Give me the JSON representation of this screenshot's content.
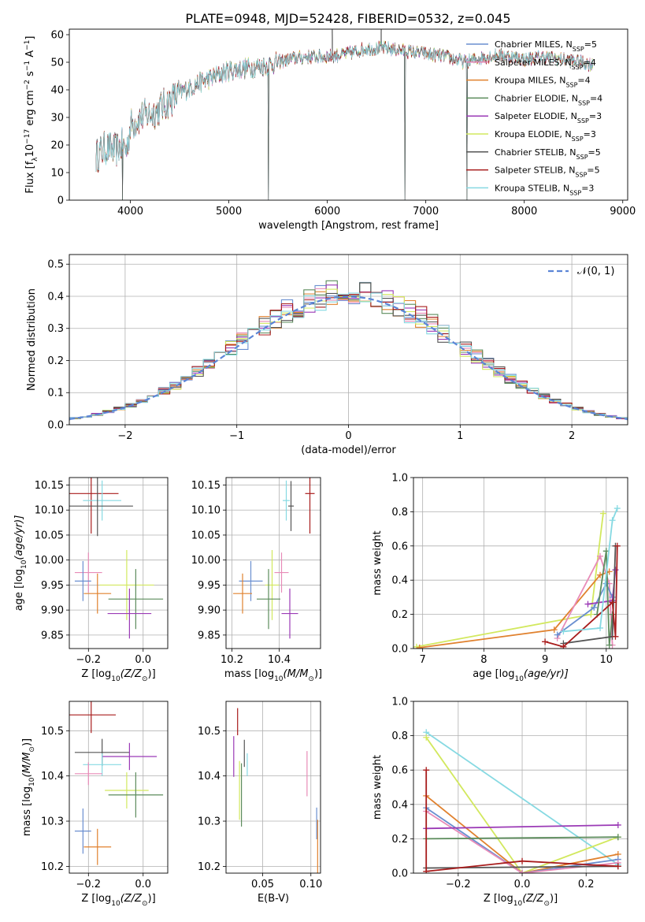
{
  "title": "PLATE=0948, MJD=52428, FIBERID=0532, z=0.045",
  "colors": {
    "cm": "#6a8fd0",
    "sm": "#e88bb8",
    "km": "#e0812e",
    "ce": "#5c8c5c",
    "se": "#9b3ab6",
    "ke": "#d2e85e",
    "cs": "#555555",
    "ss": "#a81c1c",
    "ks": "#86d9e2"
  },
  "legend": [
    {
      "key": "cm",
      "text": "Chabrier MILES, N",
      "sub": "SSP",
      "tail": "=5"
    },
    {
      "key": "sm",
      "text": "Salpeter MILES, N",
      "sub": "SSP",
      "tail": "=4"
    },
    {
      "key": "km",
      "text": "Kroupa MILES, N",
      "sub": "SSP",
      "tail": "=4"
    },
    {
      "key": "ce",
      "text": "Chabrier ELODIE, N",
      "sub": "SSP",
      "tail": "=4"
    },
    {
      "key": "se",
      "text": "Salpeter ELODIE, N",
      "sub": "SSP",
      "tail": "=3"
    },
    {
      "key": "ke",
      "text": "Kroupa ELODIE, N",
      "sub": "SSP",
      "tail": "=3"
    },
    {
      "key": "cs",
      "text": "Chabrier STELIB, N",
      "sub": "SSP",
      "tail": "=5"
    },
    {
      "key": "ss",
      "text": "Salpeter STELIB, N",
      "sub": "SSP",
      "tail": "=5"
    },
    {
      "key": "ks",
      "text": "Kroupa STELIB, N",
      "sub": "SSP",
      "tail": "=3"
    }
  ],
  "chart_data": [
    {
      "id": "spectrum",
      "type": "line",
      "xlabel": "wavelength [Angstrom, rest frame]",
      "ylabel_parts": [
        "Flux [f",
        "λ",
        "10",
        "−17",
        " erg cm",
        "−2",
        " s",
        "−1",
        " A",
        "−1",
        "]"
      ],
      "xlim": [
        3380,
        9050
      ],
      "ylim": [
        0,
        62
      ],
      "xticks": [
        4000,
        5000,
        6000,
        7000,
        8000,
        9000
      ],
      "yticks": [
        0,
        10,
        20,
        30,
        40,
        50,
        60
      ],
      "continuum": [
        [
          3650,
          16
        ],
        [
          3750,
          19
        ],
        [
          3850,
          18
        ],
        [
          3920,
          20
        ],
        [
          3960,
          18
        ],
        [
          4000,
          27
        ],
        [
          4100,
          30
        ],
        [
          4250,
          32
        ],
        [
          4400,
          36
        ],
        [
          4600,
          41
        ],
        [
          4800,
          44
        ],
        [
          5000,
          47
        ],
        [
          5200,
          48
        ],
        [
          5400,
          49
        ],
        [
          5600,
          51
        ],
        [
          5800,
          52
        ],
        [
          6000,
          52
        ],
        [
          6200,
          53
        ],
        [
          6400,
          55
        ],
        [
          6600,
          55
        ],
        [
          6800,
          54
        ],
        [
          7000,
          53
        ],
        [
          7200,
          52
        ],
        [
          7400,
          50
        ],
        [
          7600,
          52
        ],
        [
          7800,
          52.5
        ],
        [
          8000,
          51
        ],
        [
          8200,
          52
        ],
        [
          8400,
          51
        ],
        [
          8600,
          50
        ],
        [
          8700,
          49
        ]
      ],
      "dips": [
        [
          3920,
          0
        ],
        [
          5400,
          0
        ],
        [
          6790,
          0
        ],
        [
          7420,
          0
        ]
      ],
      "spikes": [
        [
          6050,
          62
        ],
        [
          6550,
          62
        ]
      ]
    },
    {
      "id": "residuals",
      "type": "histogram",
      "xlabel": "(data-model)/error",
      "ylabel": "Normed distribution",
      "xlim": [
        -2.5,
        2.5
      ],
      "ylim": [
        0,
        0.53
      ],
      "xticks": [
        -2,
        -1,
        0,
        1,
        2
      ],
      "yticks": [
        0.0,
        0.1,
        0.2,
        0.3,
        0.4,
        0.5
      ],
      "bin_width": 0.1,
      "legend": [
        "𝒩(0, 1)"
      ]
    },
    {
      "id": "age_vs_z",
      "type": "errorbar",
      "xlabel_parts": [
        "Z [log",
        "10",
        "(Z/Z",
        "⊙",
        ")]"
      ],
      "ylabel_parts": [
        "age  [log",
        "10",
        "(age/yr)]"
      ],
      "xlim": [
        -0.27,
        0.09
      ],
      "ylim": [
        9.823,
        10.165
      ],
      "xticks": [
        -0.2,
        0.0
      ],
      "yticks": [
        9.85,
        9.9,
        9.95,
        10.0,
        10.05,
        10.1,
        10.15
      ],
      "points": [
        {
          "key": "ss",
          "x": -0.19,
          "xerr": 0.1,
          "y": 10.133,
          "yerr": 0.08
        },
        {
          "key": "ks",
          "x": -0.15,
          "xerr": 0.07,
          "y": 10.119,
          "yerr": 0.04
        },
        {
          "key": "cs",
          "x": -0.167,
          "xerr": 0.13,
          "y": 10.108,
          "yerr": 0.06
        },
        {
          "key": "sm",
          "x": -0.2,
          "xerr": 0.05,
          "y": 9.975,
          "yerr": 0.04
        },
        {
          "key": "ke",
          "x": -0.06,
          "xerr": 0.1,
          "y": 9.95,
          "yerr": 0.07
        },
        {
          "key": "cm",
          "x": -0.22,
          "xerr": 0.03,
          "y": 9.958,
          "yerr": 0.04
        },
        {
          "key": "km",
          "x": -0.167,
          "xerr": 0.05,
          "y": 9.933,
          "yerr": 0.04
        },
        {
          "key": "ce",
          "x": -0.027,
          "xerr": 0.1,
          "y": 9.922,
          "yerr": 0.06
        },
        {
          "key": "se",
          "x": -0.05,
          "xerr": 0.08,
          "y": 9.893,
          "yerr": 0.05
        }
      ]
    },
    {
      "id": "age_vs_mass",
      "type": "errorbar",
      "xlabel_parts": [
        "mass [log",
        "10",
        "(M/M",
        "⊙",
        ")]"
      ],
      "xlim": [
        10.175,
        10.575
      ],
      "ylim": [
        9.823,
        10.165
      ],
      "xticks": [
        10.2,
        10.4
      ],
      "yticks": [
        9.85,
        9.9,
        9.95,
        10.0,
        10.05,
        10.1,
        10.15
      ],
      "points": [
        {
          "key": "ss",
          "x": 10.53,
          "xerr": 0.02,
          "y": 10.133,
          "yerr": 0.08
        },
        {
          "key": "ks",
          "x": 10.43,
          "xerr": 0.015,
          "y": 10.119,
          "yerr": 0.04
        },
        {
          "key": "cs",
          "x": 10.45,
          "xerr": 0.012,
          "y": 10.108,
          "yerr": 0.05
        },
        {
          "key": "sm",
          "x": 10.41,
          "xerr": 0.03,
          "y": 9.975,
          "yerr": 0.04
        },
        {
          "key": "ke",
          "x": 10.37,
          "xerr": 0.03,
          "y": 9.95,
          "yerr": 0.07
        },
        {
          "key": "cm",
          "x": 10.28,
          "xerr": 0.05,
          "y": 9.958,
          "yerr": 0.04
        },
        {
          "key": "km",
          "x": 10.245,
          "xerr": 0.04,
          "y": 9.933,
          "yerr": 0.04
        },
        {
          "key": "ce",
          "x": 10.355,
          "xerr": 0.05,
          "y": 9.922,
          "yerr": 0.06
        },
        {
          "key": "se",
          "x": 10.445,
          "xerr": 0.035,
          "y": 9.893,
          "yerr": 0.05
        }
      ]
    },
    {
      "id": "weight_vs_age",
      "type": "line",
      "xlabel_parts": [
        "age  [log",
        "10",
        "(age/yr)]"
      ],
      "ylabel": "mass weight",
      "xlim": [
        6.85,
        10.35
      ],
      "ylim": [
        0,
        1
      ],
      "xticks": [
        7,
        8,
        9,
        10
      ],
      "yticks": [
        0.0,
        0.2,
        0.4,
        0.6,
        0.8,
        1.0
      ],
      "series": [
        {
          "key": "ke",
          "x": [
            6.9,
            9.75,
            9.95
          ],
          "y": [
            0.01,
            0.2,
            0.79
          ]
        },
        {
          "key": "km",
          "x": [
            6.95,
            9.15,
            9.9,
            10.05
          ],
          "y": [
            0.005,
            0.11,
            0.43,
            0.45
          ]
        },
        {
          "key": "sm",
          "x": [
            9.2,
            9.9,
            10.05,
            10.1
          ],
          "y": [
            0.06,
            0.54,
            0.38,
            0.02
          ]
        },
        {
          "key": "cm",
          "x": [
            9.2,
            9.8,
            10.0,
            10.1
          ],
          "y": [
            0.08,
            0.24,
            0.38,
            0.3
          ]
        },
        {
          "key": "se",
          "x": [
            9.7,
            10.1,
            10.15
          ],
          "y": [
            0.26,
            0.28,
            0.46
          ]
        },
        {
          "key": "ce",
          "x": [
            9.85,
            10.0,
            10.05,
            10.1
          ],
          "y": [
            0.2,
            0.57,
            0.02,
            0.2
          ]
        },
        {
          "key": "cs",
          "x": [
            9.3,
            10.1,
            10.15
          ],
          "y": [
            0.03,
            0.07,
            0.6
          ]
        },
        {
          "key": "ss",
          "x": [
            9.0,
            9.3,
            10.1,
            10.15,
            10.18
          ],
          "y": [
            0.04,
            0.01,
            0.27,
            0.07,
            0.6
          ]
        },
        {
          "key": "ks",
          "x": [
            9.3,
            9.9,
            10.1,
            10.18
          ],
          "y": [
            0.1,
            0.12,
            0.75,
            0.82
          ]
        }
      ]
    },
    {
      "id": "mass_vs_z",
      "type": "errorbar",
      "xlabel_parts": [
        "Z [log",
        "10",
        "(Z/Z",
        "⊙",
        ")]"
      ],
      "ylabel_parts": [
        "mass [log",
        "10",
        "(M/M",
        "⊙",
        ")]"
      ],
      "xlim": [
        -0.27,
        0.09
      ],
      "ylim": [
        10.185,
        10.565
      ],
      "xticks": [
        -0.2,
        0.0
      ],
      "yticks": [
        10.2,
        10.3,
        10.4,
        10.5
      ],
      "points": [
        {
          "key": "ss",
          "x": -0.19,
          "xerr": 0.09,
          "y": 10.535,
          "yerr": 0.04
        },
        {
          "key": "cs",
          "x": -0.15,
          "xerr": 0.1,
          "y": 10.452,
          "yerr": 0.03
        },
        {
          "key": "se",
          "x": -0.05,
          "xerr": 0.1,
          "y": 10.443,
          "yerr": 0.03
        },
        {
          "key": "ks",
          "x": -0.15,
          "xerr": 0.07,
          "y": 10.425,
          "yerr": 0.025
        },
        {
          "key": "sm",
          "x": -0.2,
          "xerr": 0.05,
          "y": 10.405,
          "yerr": 0.025
        },
        {
          "key": "ke",
          "x": -0.06,
          "xerr": 0.08,
          "y": 10.368,
          "yerr": 0.04
        },
        {
          "key": "ce",
          "x": -0.027,
          "xerr": 0.1,
          "y": 10.358,
          "yerr": 0.05
        },
        {
          "key": "cm",
          "x": -0.22,
          "xerr": 0.03,
          "y": 10.278,
          "yerr": 0.05
        },
        {
          "key": "km",
          "x": -0.167,
          "xerr": 0.05,
          "y": 10.243,
          "yerr": 0.04
        }
      ]
    },
    {
      "id": "mass_vs_ebv",
      "type": "errorbar",
      "xlabel": "E(B-V)",
      "xlim": [
        0.012,
        0.11
      ],
      "ylim": [
        10.185,
        10.565
      ],
      "xticks": [
        0.05,
        0.1
      ],
      "yticks": [
        10.2,
        10.3,
        10.4,
        10.5
      ],
      "points": [
        {
          "key": "ss",
          "x": 0.024,
          "xerr": 0,
          "y": 10.52,
          "yerr": 0.03
        },
        {
          "key": "se",
          "x": 0.02,
          "xerr": 0,
          "y": 10.443,
          "yerr": 0.045
        },
        {
          "key": "cs",
          "x": 0.031,
          "xerr": 0,
          "y": 10.45,
          "yerr": 0.03
        },
        {
          "key": "ks",
          "x": 0.034,
          "xerr": 0,
          "y": 10.425,
          "yerr": 0.025
        },
        {
          "key": "ke",
          "x": 0.026,
          "xerr": 0,
          "y": 10.368,
          "yerr": 0.065
        },
        {
          "key": "ce",
          "x": 0.028,
          "xerr": 0,
          "y": 10.358,
          "yerr": 0.07
        },
        {
          "key": "sm",
          "x": 0.096,
          "xerr": 0,
          "y": 10.405,
          "yerr": 0.05
        },
        {
          "key": "cm",
          "x": 0.106,
          "xerr": 0,
          "y": 10.295,
          "yerr": 0.035
        },
        {
          "key": "km",
          "x": 0.107,
          "xerr": 0,
          "y": 10.243,
          "yerr": 0.06
        }
      ]
    },
    {
      "id": "weight_vs_z",
      "type": "line",
      "xlabel_parts": [
        "Z [log",
        "10",
        "(Z/Z",
        "⊙",
        ")]"
      ],
      "ylabel": "mass weight",
      "xlim": [
        -0.34,
        0.33
      ],
      "ylim": [
        0,
        1
      ],
      "xticks": [
        -0.2,
        0.0,
        0.2
      ],
      "yticks": [
        0.0,
        0.2,
        0.4,
        0.6,
        0.8,
        1.0
      ],
      "series": [
        {
          "key": "ks",
          "x": [
            -0.3,
            0.3
          ],
          "y": [
            0.82,
            0.05
          ]
        },
        {
          "key": "ke",
          "x": [
            -0.3,
            0.0,
            0.3
          ],
          "y": [
            0.79,
            0.0,
            0.21
          ]
        },
        {
          "key": "km",
          "x": [
            -0.3,
            0.0,
            0.3
          ],
          "y": [
            0.45,
            0.0,
            0.11
          ]
        },
        {
          "key": "cm",
          "x": [
            -0.3,
            0.0,
            0.3
          ],
          "y": [
            0.38,
            0.0,
            0.08
          ]
        },
        {
          "key": "sm",
          "x": [
            -0.3,
            0.0,
            0.3
          ],
          "y": [
            0.36,
            0.0,
            0.06
          ]
        },
        {
          "key": "se",
          "x": [
            -0.3,
            0.3
          ],
          "y": [
            0.26,
            0.28
          ]
        },
        {
          "key": "ce",
          "x": [
            -0.3,
            0.3
          ],
          "y": [
            0.2,
            0.21
          ]
        },
        {
          "key": "cs",
          "x": [
            -0.3,
            0.3
          ],
          "y": [
            0.03,
            0.04
          ]
        },
        {
          "key": "ss",
          "x": [
            -0.3,
            -0.3,
            0.0,
            0.3
          ],
          "y": [
            0.6,
            0.01,
            0.07,
            0.04
          ]
        }
      ]
    }
  ]
}
